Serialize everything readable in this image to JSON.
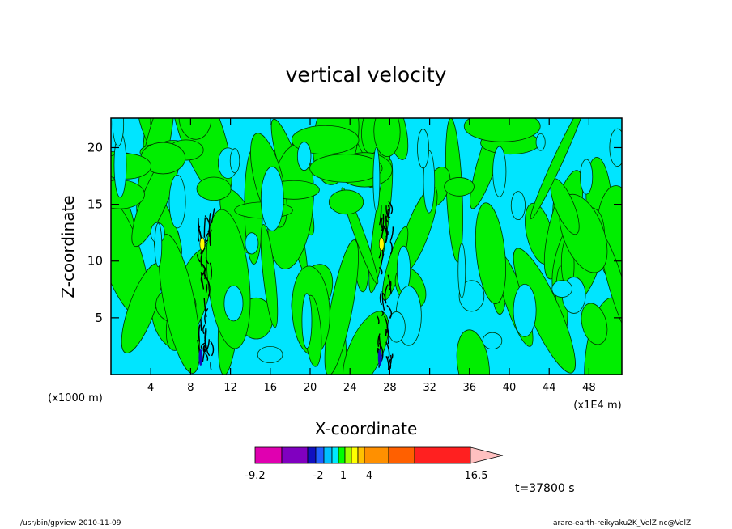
{
  "chart_data": {
    "type": "heatmap",
    "title": "vertical velocity",
    "xlabel": "X-coordinate",
    "ylabel": "Z-coordinate",
    "x_scale_note": "(x1000 m)",
    "x_unit_note": "(x1E4 m)",
    "x_ticks": [
      "4",
      "8",
      "12",
      "16",
      "20",
      "24",
      "28",
      "32",
      "36",
      "40",
      "44",
      "48"
    ],
    "y_ticks": [
      "5",
      "10",
      "15",
      "20"
    ],
    "xlim": [
      0,
      51.3
    ],
    "ylim": [
      0,
      22.6
    ],
    "time_label": "t=37800 s",
    "colorbar": {
      "labels": [
        "-9.2",
        "-2",
        "1",
        "4",
        "16.5"
      ],
      "colors": [
        "#e000b0",
        "#8000c0",
        "#1010c0",
        "#2060ff",
        "#00c0ff",
        "#00e8ff",
        "#00ff00",
        "#a0ff00",
        "#ffff00",
        "#ffc000",
        "#ff9000",
        "#ff6000",
        "#ff2020",
        "#ff8080",
        "#ffc0c0"
      ]
    },
    "background_colors": {
      "low": "#00e5ff",
      "high": "#00ee00"
    },
    "convective_cores_x": [
      9.5,
      27.5
    ]
  },
  "footer": {
    "left": "/usr/bin/gpview  2010-11-09",
    "right": "arare-earth-reikyaku2K_VelZ.nc@VelZ"
  }
}
